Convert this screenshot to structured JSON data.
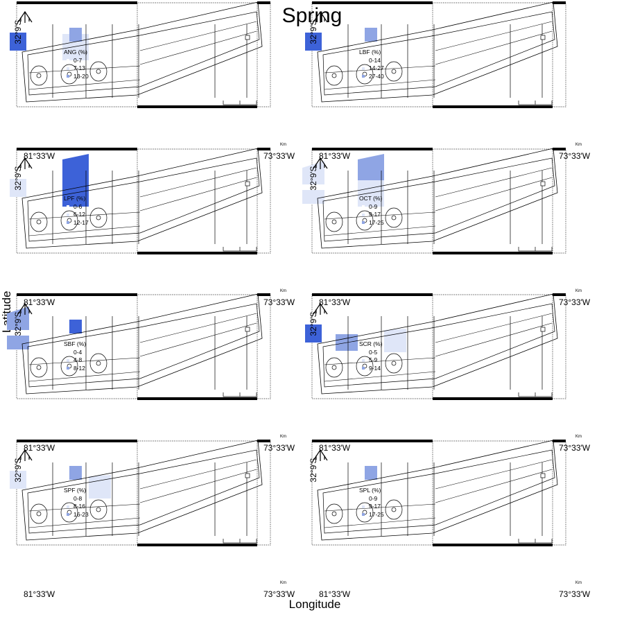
{
  "figure": {
    "title": "Spring",
    "ylabel": "Latitude",
    "xlabel": "Longitude",
    "lat_tick": "32°9'S",
    "lon_left": "81°33'W",
    "lon_right": "73°33'W",
    "scale_unit": "Km"
  },
  "chart_data": [
    {
      "type": "heatmap",
      "title": "ANG (%)",
      "legend": [
        "0-7",
        "7-13",
        "13-20"
      ],
      "shaded_cells": [
        {
          "cell": "zone-1-core",
          "class": 3
        },
        {
          "cell": "zone-3-lower",
          "class": 1
        },
        {
          "cell": "zone-3-core",
          "class": 2
        }
      ]
    },
    {
      "type": "heatmap",
      "title": "LBF (%)",
      "legend": [
        "0-14",
        "14-27",
        "27-40"
      ],
      "shaded_cells": [
        {
          "cell": "zone-1-core",
          "class": 3
        },
        {
          "cell": "zone-3-core",
          "class": 2
        }
      ]
    },
    {
      "type": "heatmap",
      "title": "LPF (%)",
      "legend": [
        "0-6",
        "6-12",
        "12-17"
      ],
      "shaded_cells": [
        {
          "cell": "zone-3-upper",
          "class": 3
        },
        {
          "cell": "zone-3-lower",
          "class": 3
        },
        {
          "cell": "zone-1-core",
          "class": 1
        }
      ]
    },
    {
      "type": "heatmap",
      "title": "OCT (%)",
      "legend": [
        "0-9",
        "9-17",
        "17-25"
      ],
      "shaded_cells": [
        {
          "cell": "zone-1-upper",
          "class": 1
        },
        {
          "cell": "zone-1-lower",
          "class": 1
        },
        {
          "cell": "zone-3-upper",
          "class": 2
        },
        {
          "cell": "zone-3-lower",
          "class": 1
        }
      ]
    },
    {
      "type": "heatmap",
      "title": "SBF (%)",
      "legend": [
        "0-4",
        "4-8",
        "8-12"
      ],
      "shaded_cells": [
        {
          "cell": "zone-1-upper",
          "class": 2
        },
        {
          "cell": "zone-1-lower",
          "class": 2
        },
        {
          "cell": "zone-3-core",
          "class": 3
        }
      ]
    },
    {
      "type": "heatmap",
      "title": "SCR (%)",
      "legend": [
        "0-5",
        "5-9",
        "9-14"
      ],
      "shaded_cells": [
        {
          "cell": "zone-1-core",
          "class": 3
        },
        {
          "cell": "zone-2-lower",
          "class": 2
        },
        {
          "cell": "zone-4-lower",
          "class": 1
        }
      ]
    },
    {
      "type": "heatmap",
      "title": "SPF (%)",
      "legend": [
        "0-8",
        "8-16",
        "16-23"
      ],
      "shaded_cells": [
        {
          "cell": "zone-4-lower",
          "class": 1
        },
        {
          "cell": "zone-3-core",
          "class": 2
        },
        {
          "cell": "zone-1-core",
          "class": 1
        }
      ]
    },
    {
      "type": "heatmap",
      "title": "SPL (%)",
      "legend": [
        "0-9",
        "9-17",
        "17-25"
      ],
      "shaded_cells": [
        {
          "cell": "zone-3-core",
          "class": 2
        }
      ]
    }
  ],
  "colors": {
    "class1": "#dfe6f8",
    "class2": "#8fa5e4",
    "class3": "#3d62d8",
    "lines": "#000000"
  }
}
